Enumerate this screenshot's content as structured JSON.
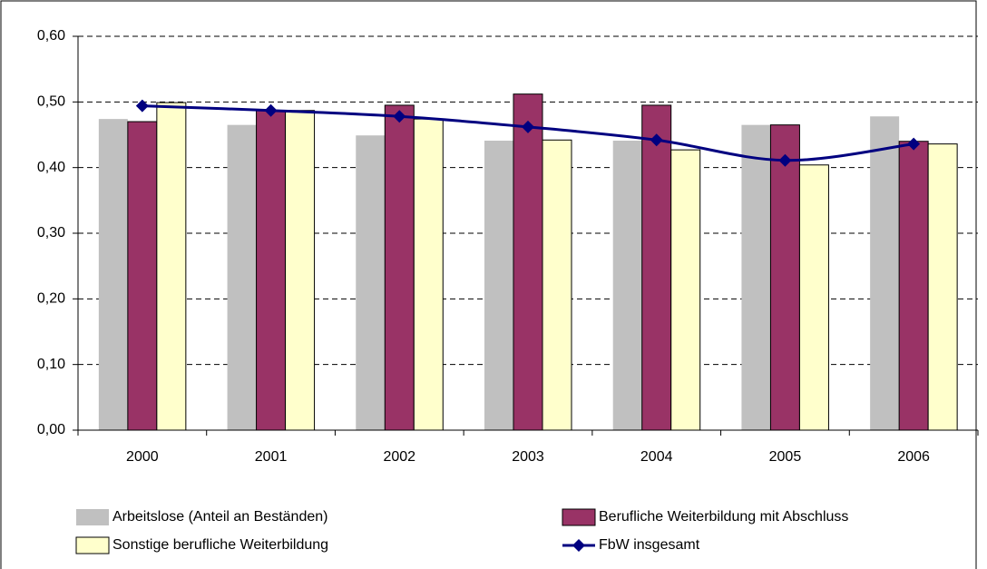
{
  "chart_data": {
    "type": "bar",
    "categories": [
      "2000",
      "2001",
      "2002",
      "2003",
      "2004",
      "2005",
      "2006"
    ],
    "series": [
      {
        "name": "Arbeitslose (Anteil an Beständen)",
        "type": "bar",
        "color": "#c0c0c0",
        "values": [
          0.474,
          0.465,
          0.449,
          0.441,
          0.441,
          0.465,
          0.478
        ]
      },
      {
        "name": "Berufliche Weiterbildung mit Abschluss",
        "type": "bar",
        "color": "#993366",
        "values": [
          0.47,
          0.487,
          0.495,
          0.512,
          0.495,
          0.465,
          0.44
        ]
      },
      {
        "name": "Sonstige berufliche Weiterbildung",
        "type": "bar",
        "color": "#ffffcc",
        "values": [
          0.499,
          0.487,
          0.474,
          0.442,
          0.427,
          0.404,
          0.436
        ]
      },
      {
        "name": "FbW insgesamt",
        "type": "line",
        "color": "#000080",
        "values": [
          0.494,
          0.487,
          0.478,
          0.462,
          0.442,
          0.411,
          0.436
        ]
      }
    ],
    "ylim": [
      0,
      0.6
    ],
    "yticks": [
      {
        "value": 0,
        "label": "0,00"
      },
      {
        "value": 0.1,
        "label": "0,10"
      },
      {
        "value": 0.2,
        "label": "0,20"
      },
      {
        "value": 0.3,
        "label": "0,30"
      },
      {
        "value": 0.4,
        "label": "0,40"
      },
      {
        "value": 0.5,
        "label": "0,50"
      },
      {
        "value": 0.6,
        "label": "0,60"
      }
    ],
    "grid": true,
    "legend": "bottom"
  }
}
